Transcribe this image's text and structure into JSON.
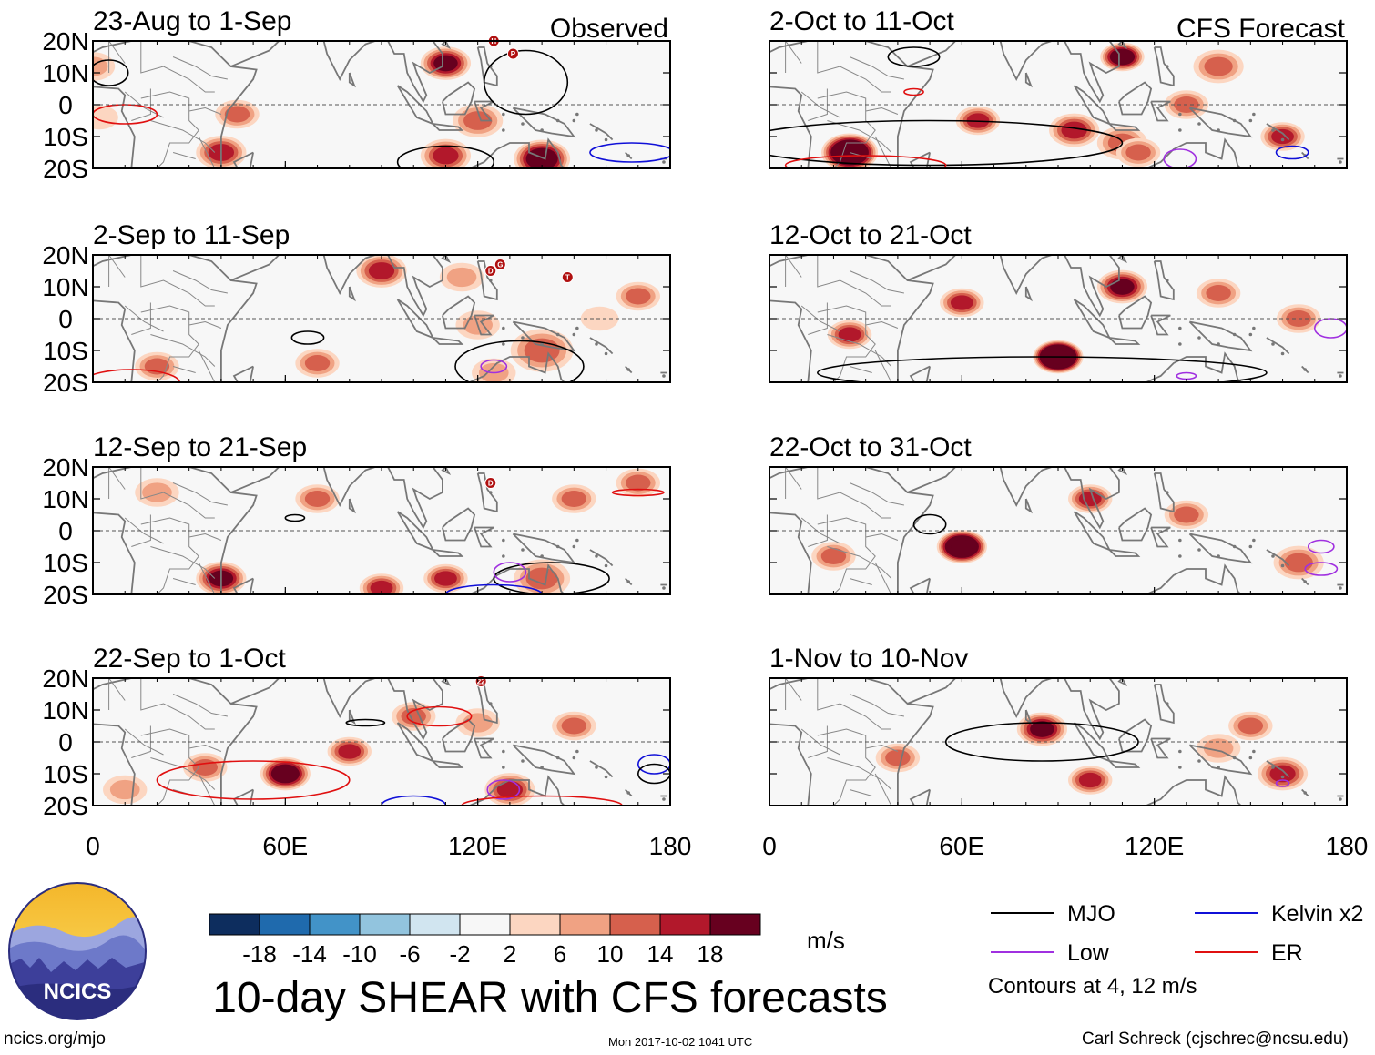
{
  "chart_data": {
    "type": "heatmap",
    "title": "10-day SHEAR with CFS forecasts",
    "variable": "SHEAR",
    "units": "m/s",
    "xaxis": {
      "range": [
        0,
        180
      ],
      "ticks": [
        0,
        60,
        120,
        180
      ],
      "tick_labels": [
        "0",
        "60E",
        "120E",
        "180"
      ]
    },
    "yaxis": {
      "range": [
        -20,
        20
      ],
      "ticks": [
        20,
        10,
        0,
        -10,
        -20
      ],
      "tick_labels": [
        "20N",
        "10N",
        "0",
        "10S",
        "20S"
      ]
    },
    "colorbar": {
      "levels": [
        -18,
        -14,
        -10,
        -6,
        -2,
        2,
        6,
        10,
        14,
        18
      ],
      "tick_labels": [
        "-18",
        "-14",
        "-10",
        "-6",
        "-2",
        "2",
        "6",
        "10",
        "14",
        "18"
      ],
      "colors": [
        "#0d2d5e",
        "#1f6aad",
        "#4293c8",
        "#92c4de",
        "#d1e5f0",
        "#f7f7f7",
        "#fcd6c1",
        "#f0a283",
        "#d6604d",
        "#b2182b",
        "#67001f"
      ]
    },
    "contour_note": "Contours at 4, 12 m/s",
    "legend": [
      {
        "label": "MJO",
        "color": "#000000"
      },
      {
        "label": "Kelvin x2",
        "color": "#1010d8"
      },
      {
        "label": "Low",
        "color": "#a030e0"
      },
      {
        "label": "ER",
        "color": "#e01010"
      }
    ],
    "panels": [
      {
        "id": "p1",
        "period": "23-Aug to 1-Sep",
        "tag": "Observed"
      },
      {
        "id": "p2",
        "period": "2-Sep to 11-Sep",
        "tag": ""
      },
      {
        "id": "p3",
        "period": "12-Sep to 21-Sep",
        "tag": ""
      },
      {
        "id": "p4",
        "period": "22-Sep to 1-Oct",
        "tag": ""
      },
      {
        "id": "p5",
        "period": "2-Oct to 11-Oct",
        "tag": "CFS Forecast"
      },
      {
        "id": "p6",
        "period": "12-Oct to 21-Oct",
        "tag": ""
      },
      {
        "id": "p7",
        "period": "22-Oct to 31-Oct",
        "tag": ""
      },
      {
        "id": "p8",
        "period": "1-Nov to 10-Nov",
        "tag": ""
      }
    ],
    "storm_markers": [
      {
        "panel": 0,
        "lon": 125,
        "lat": 20,
        "label": "H"
      },
      {
        "panel": 0,
        "lon": 131,
        "lat": 16,
        "label": "P"
      },
      {
        "panel": 1,
        "lon": 124,
        "lat": 15,
        "label": "D"
      },
      {
        "panel": 1,
        "lon": 127,
        "lat": 17,
        "label": "G"
      },
      {
        "panel": 1,
        "lon": 148,
        "lat": 13,
        "label": "T"
      },
      {
        "panel": 2,
        "lon": 124,
        "lat": 15,
        "label": "D"
      },
      {
        "panel": 3,
        "lon": 121,
        "lat": 19,
        "label": "22"
      }
    ],
    "fields": [
      [
        [
          0,
          12,
          6,
          3
        ],
        [
          40,
          -15,
          16,
          4
        ],
        [
          140,
          -17,
          22,
          5
        ],
        [
          110,
          -16,
          14,
          4
        ],
        [
          110,
          13,
          18,
          4
        ],
        [
          120,
          -5,
          10,
          4
        ],
        [
          2,
          -4,
          5,
          2
        ],
        [
          45,
          -3,
          10,
          3
        ]
      ],
      [
        [
          125,
          -17,
          8,
          3
        ],
        [
          140,
          -10,
          10,
          6
        ],
        [
          120,
          -2,
          6,
          3
        ],
        [
          90,
          15,
          14,
          4
        ],
        [
          115,
          13,
          8,
          3
        ],
        [
          170,
          7,
          10,
          3
        ],
        [
          20,
          -15,
          10,
          3
        ],
        [
          70,
          -14,
          12,
          3
        ],
        [
          158,
          0,
          5,
          2
        ]
      ],
      [
        [
          140,
          -15,
          12,
          5
        ],
        [
          170,
          15,
          10,
          3
        ],
        [
          40,
          -15,
          20,
          4
        ],
        [
          90,
          -18,
          16,
          3
        ],
        [
          110,
          -15,
          15,
          3
        ],
        [
          70,
          10,
          10,
          3
        ],
        [
          150,
          10,
          10,
          3
        ],
        [
          20,
          12,
          8,
          3
        ]
      ],
      [
        [
          130,
          -15,
          15,
          4
        ],
        [
          60,
          -10,
          25,
          4
        ],
        [
          35,
          -8,
          12,
          3
        ],
        [
          100,
          8,
          10,
          3
        ],
        [
          150,
          5,
          10,
          3
        ],
        [
          10,
          -15,
          8,
          3
        ],
        [
          120,
          6,
          8,
          3
        ],
        [
          80,
          -3,
          15,
          3
        ]
      ],
      [
        [
          25,
          -15,
          30,
          5
        ],
        [
          95,
          -8,
          15,
          4
        ],
        [
          110,
          -12,
          12,
          4
        ],
        [
          110,
          15,
          25,
          3
        ],
        [
          140,
          12,
          10,
          4
        ],
        [
          160,
          -10,
          15,
          3
        ],
        [
          115,
          -15,
          10,
          3
        ],
        [
          130,
          0,
          12,
          3
        ],
        [
          65,
          -5,
          15,
          3
        ]
      ],
      [
        [
          90,
          -12,
          40,
          4
        ],
        [
          110,
          10,
          20,
          4
        ],
        [
          140,
          8,
          10,
          3
        ],
        [
          25,
          -5,
          15,
          3
        ],
        [
          165,
          0,
          10,
          3
        ],
        [
          60,
          5,
          15,
          3
        ]
      ],
      [
        [
          60,
          -5,
          30,
          4
        ],
        [
          165,
          -10,
          12,
          4
        ],
        [
          130,
          5,
          10,
          3
        ],
        [
          20,
          -8,
          10,
          3
        ],
        [
          100,
          10,
          15,
          3
        ]
      ],
      [
        [
          85,
          4,
          20,
          4
        ],
        [
          160,
          -10,
          15,
          4
        ],
        [
          140,
          -2,
          8,
          3
        ],
        [
          40,
          -5,
          10,
          3
        ],
        [
          150,
          5,
          10,
          3
        ],
        [
          100,
          -12,
          15,
          3
        ]
      ]
    ],
    "contours": [
      [
        [
          "mjo",
          135,
          7,
          13,
          10
        ],
        [
          "mjo",
          5,
          10,
          6,
          4
        ],
        [
          "mjo",
          110,
          -18,
          15,
          5
        ],
        [
          "ker",
          168,
          -15,
          13,
          3
        ],
        [
          "er",
          10,
          -3,
          10,
          3
        ]
      ],
      [
        [
          "mjo",
          133,
          -15,
          20,
          8
        ],
        [
          "mjo",
          67,
          -6,
          5,
          2
        ],
        [
          "er",
          12,
          -20,
          15,
          4
        ],
        [
          "low",
          125,
          -15,
          4,
          2
        ]
      ],
      [
        [
          "mjo",
          143,
          -15,
          18,
          5
        ],
        [
          "mjo",
          63,
          4,
          3,
          1
        ],
        [
          "low",
          130,
          -13,
          5,
          3
        ],
        [
          "er",
          170,
          12,
          8,
          1
        ],
        [
          "ker",
          125,
          -20,
          15,
          3
        ]
      ],
      [
        [
          "er",
          50,
          -12,
          30,
          6
        ],
        [
          "er",
          108,
          8,
          10,
          3
        ],
        [
          "mjo",
          85,
          6,
          6,
          1
        ],
        [
          "low",
          128,
          -15,
          5,
          3
        ],
        [
          "ker",
          175,
          -7,
          5,
          3
        ],
        [
          "ker",
          100,
          -20,
          10,
          3
        ],
        [
          "er",
          140,
          -20,
          25,
          3
        ],
        [
          "mjo",
          175,
          -10,
          5,
          3
        ]
      ],
      [
        [
          "mjo",
          50,
          -12,
          60,
          7
        ],
        [
          "mjo",
          45,
          15,
          8,
          3
        ],
        [
          "low",
          128,
          -17,
          5,
          3
        ],
        [
          "ker",
          163,
          -15,
          5,
          2
        ],
        [
          "er",
          30,
          -19,
          25,
          3
        ],
        [
          "er",
          45,
          4,
          3,
          1
        ]
      ],
      [
        [
          "mjo",
          85,
          -17,
          70,
          5
        ],
        [
          "low",
          175,
          -3,
          5,
          3
        ],
        [
          "low",
          130,
          -18,
          3,
          1
        ]
      ],
      [
        [
          "mjo",
          50,
          2,
          5,
          3
        ],
        [
          "low",
          172,
          -5,
          4,
          2
        ],
        [
          "low",
          172,
          -12,
          5,
          2
        ]
      ],
      [
        [
          "mjo",
          85,
          0,
          30,
          6
        ],
        [
          "low",
          160,
          -13,
          2,
          1
        ]
      ]
    ]
  },
  "footer": {
    "logo_text": "NCICS",
    "website": "ncics.org/mjo",
    "timestamp": "Mon 2017-10-02 1041 UTC",
    "author": "Carl Schreck (cjschrec@ncsu.edu)"
  }
}
